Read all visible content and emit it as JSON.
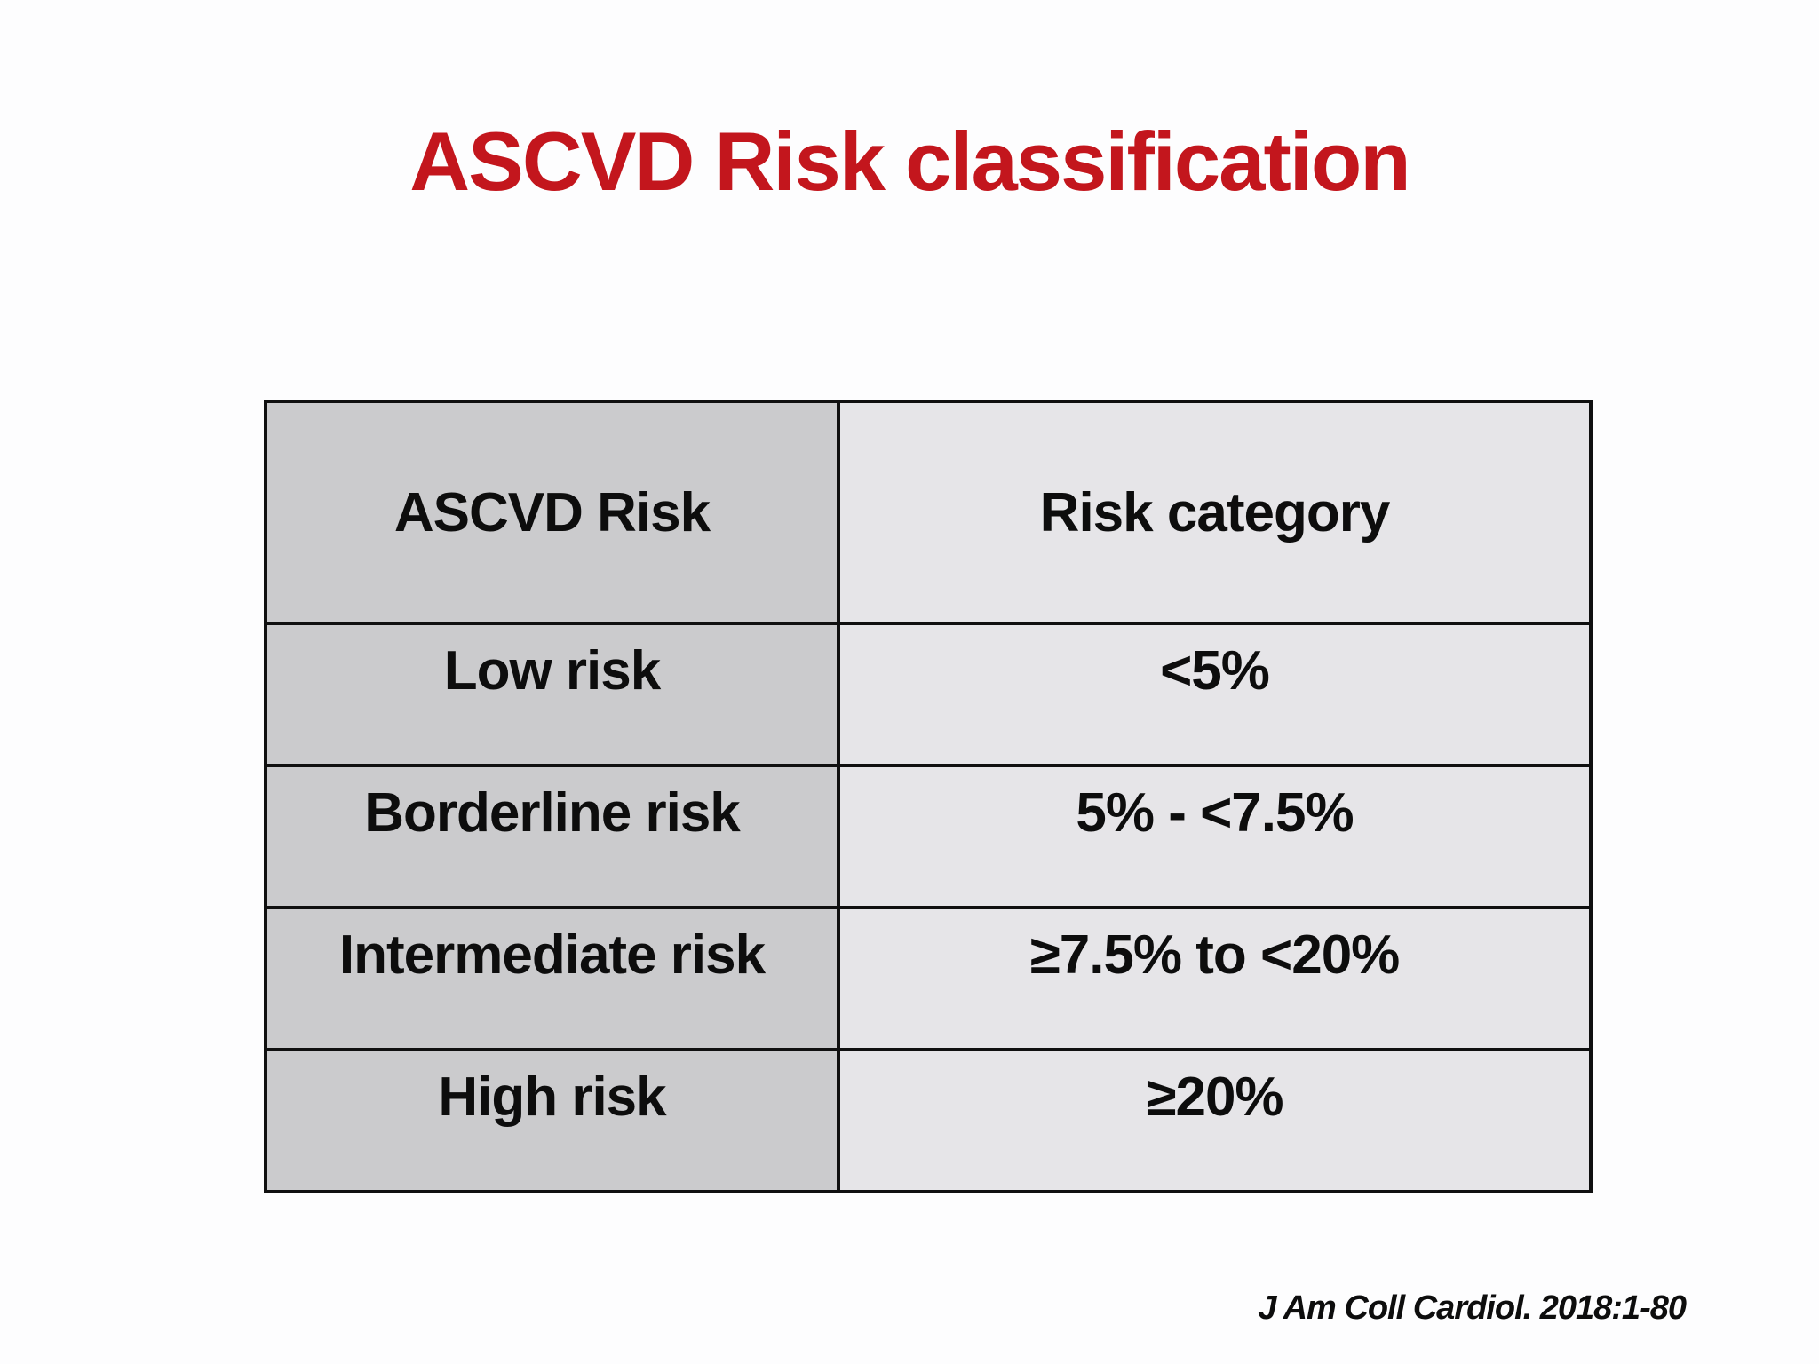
{
  "slide": {
    "title": "ASCVD Risk classification",
    "citation": "J Am Coll Cardiol. 2018:1-80"
  },
  "table": {
    "columns": [
      "ASCVD Risk",
      "Risk category"
    ],
    "rows": [
      {
        "risk": "Low risk",
        "category": "<5%"
      },
      {
        "risk": "Borderline risk",
        "category": "5% - <7.5%"
      },
      {
        "risk": "Intermediate risk",
        "category": "≥7.5% to <20%"
      },
      {
        "risk": "High risk",
        "category": "≥20%"
      }
    ]
  },
  "colors": {
    "title_red": "#c3161d",
    "left_col_bg": "#cbcbcd",
    "right_col_bg": "#e6e5e8",
    "border": "#101010",
    "text": "#0d0d0d",
    "page_bg": "#fdfdfe"
  }
}
